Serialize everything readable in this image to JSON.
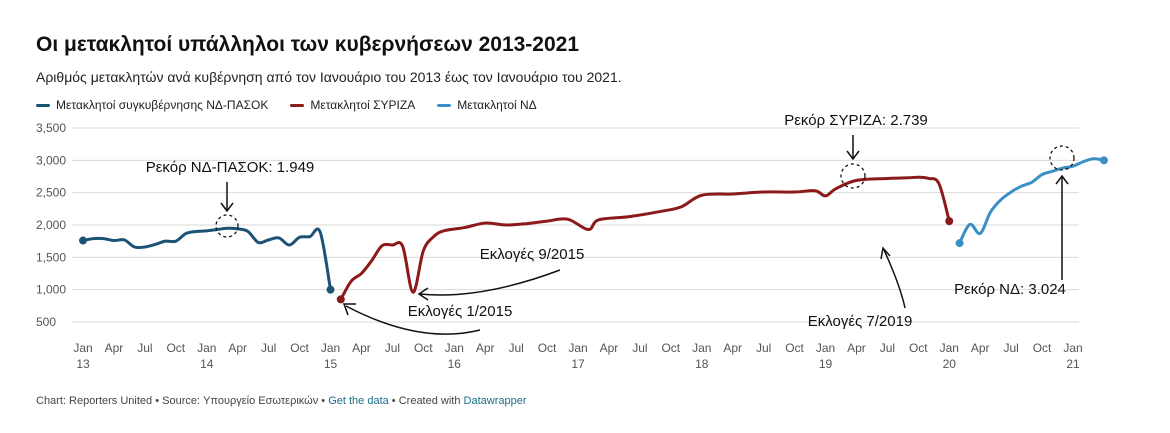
{
  "header": {
    "title": "Οι μετακλητοί υπάλληλοι των κυβερνήσεων 2013-2021",
    "subtitle": "Αριθμός μετακλητών ανά κυβέρνηση από τον Ιανουάριο του 2013 έως τον Ιανουάριο του 2021."
  },
  "colors": {
    "nd_pasok": "#1c5276",
    "syriza": "#8b1a1a",
    "nd": "#3a8fc6",
    "grid": "#d9d9d9",
    "axis": "#555555"
  },
  "footer": {
    "prefix": "Chart: Reporters United • Source: Υπουργείο Εσωτερικών • ",
    "get_data": "Get the data",
    "middle": " • Created with ",
    "datawrapper": "Datawrapper"
  },
  "chart_data": {
    "type": "line",
    "ylim": [
      500,
      3500
    ],
    "y_ticks": [
      "3,500",
      "3,000",
      "2,500",
      "2,000",
      "1,500",
      "1,000",
      "500"
    ],
    "x_ticks": [
      {
        "label": "Jan",
        "year": "13"
      },
      {
        "label": "Apr",
        "year": ""
      },
      {
        "label": "Jul",
        "year": ""
      },
      {
        "label": "Oct",
        "year": ""
      },
      {
        "label": "Jan",
        "year": "14"
      },
      {
        "label": "Apr",
        "year": ""
      },
      {
        "label": "Jul",
        "year": ""
      },
      {
        "label": "Oct",
        "year": ""
      },
      {
        "label": "Jan",
        "year": "15"
      },
      {
        "label": "Apr",
        "year": ""
      },
      {
        "label": "Jul",
        "year": ""
      },
      {
        "label": "Oct",
        "year": ""
      },
      {
        "label": "Jan",
        "year": "16"
      },
      {
        "label": "Apr",
        "year": ""
      },
      {
        "label": "Jul",
        "year": ""
      },
      {
        "label": "Oct",
        "year": ""
      },
      {
        "label": "Jan",
        "year": "17"
      },
      {
        "label": "Apr",
        "year": ""
      },
      {
        "label": "Jul",
        "year": ""
      },
      {
        "label": "Oct",
        "year": ""
      },
      {
        "label": "Jan",
        "year": "18"
      },
      {
        "label": "Apr",
        "year": ""
      },
      {
        "label": "Jul",
        "year": ""
      },
      {
        "label": "Oct",
        "year": ""
      },
      {
        "label": "Jan",
        "year": "19"
      },
      {
        "label": "Apr",
        "year": ""
      },
      {
        "label": "Jul",
        "year": ""
      },
      {
        "label": "Oct",
        "year": ""
      },
      {
        "label": "Jan",
        "year": "20"
      },
      {
        "label": "Apr",
        "year": ""
      },
      {
        "label": "Jul",
        "year": ""
      },
      {
        "label": "Oct",
        "year": ""
      },
      {
        "label": "Jan",
        "year": "21"
      }
    ],
    "series": [
      {
        "name": "Μετακλητοί συγκυβέρνησης ΝΔ-ΠΑΣΟΚ",
        "color_key": "nd_pasok",
        "points": [
          [
            "2013-01",
            1760
          ],
          [
            "2013-02",
            1790
          ],
          [
            "2013-03",
            1790
          ],
          [
            "2013-04",
            1760
          ],
          [
            "2013-05",
            1770
          ],
          [
            "2013-06",
            1660
          ],
          [
            "2013-07",
            1660
          ],
          [
            "2013-08",
            1700
          ],
          [
            "2013-09",
            1750
          ],
          [
            "2013-10",
            1750
          ],
          [
            "2013-11",
            1870
          ],
          [
            "2013-12",
            1900
          ],
          [
            "2014-01",
            1910
          ],
          [
            "2014-02",
            1930
          ],
          [
            "2014-03",
            1949
          ],
          [
            "2014-04",
            1940
          ],
          [
            "2014-05",
            1900
          ],
          [
            "2014-06",
            1730
          ],
          [
            "2014-07",
            1770
          ],
          [
            "2014-08",
            1800
          ],
          [
            "2014-09",
            1690
          ],
          [
            "2014-10",
            1810
          ],
          [
            "2014-11",
            1820
          ],
          [
            "2014-12",
            1890
          ],
          [
            "2015-01",
            1000
          ]
        ]
      },
      {
        "name": "Μετακλητοί ΣΥΡΙΖΑ",
        "color_key": "syriza",
        "points": [
          [
            "2015-02",
            850
          ],
          [
            "2015-03",
            1130
          ],
          [
            "2015-04",
            1250
          ],
          [
            "2015-05",
            1450
          ],
          [
            "2015-06",
            1680
          ],
          [
            "2015-07",
            1690
          ],
          [
            "2015-08",
            1670
          ],
          [
            "2015-09",
            960
          ],
          [
            "2015-10",
            1600
          ],
          [
            "2015-11",
            1820
          ],
          [
            "2015-12",
            1910
          ],
          [
            "2016-02",
            1960
          ],
          [
            "2016-04",
            2030
          ],
          [
            "2016-06",
            2000
          ],
          [
            "2016-08",
            2020
          ],
          [
            "2016-10",
            2060
          ],
          [
            "2016-12",
            2090
          ],
          [
            "2017-02",
            1930
          ],
          [
            "2017-03",
            2080
          ],
          [
            "2017-06",
            2130
          ],
          [
            "2017-09",
            2210
          ],
          [
            "2017-11",
            2280
          ],
          [
            "2018-01",
            2460
          ],
          [
            "2018-04",
            2480
          ],
          [
            "2018-07",
            2510
          ],
          [
            "2018-10",
            2510
          ],
          [
            "2018-12",
            2530
          ],
          [
            "2019-01",
            2450
          ],
          [
            "2019-02",
            2560
          ],
          [
            "2019-04",
            2690
          ],
          [
            "2019-07",
            2720
          ],
          [
            "2019-09",
            2730
          ],
          [
            "2019-10",
            2739
          ],
          [
            "2019-11",
            2720
          ],
          [
            "2019-12",
            2640
          ],
          [
            "2020-01",
            2060
          ]
        ]
      },
      {
        "name": "Μετακλητοί ΝΔ",
        "color_key": "nd",
        "points": [
          [
            "2020-02",
            1720
          ],
          [
            "2020-03",
            2010
          ],
          [
            "2020-04",
            1870
          ],
          [
            "2020-05",
            2200
          ],
          [
            "2020-06",
            2390
          ],
          [
            "2020-07",
            2510
          ],
          [
            "2020-08",
            2600
          ],
          [
            "2020-09",
            2660
          ],
          [
            "2020-10",
            2780
          ],
          [
            "2020-11",
            2830
          ],
          [
            "2020-12",
            2880
          ],
          [
            "2021-01",
            2910
          ],
          [
            "2021-02",
            2980
          ],
          [
            "2021-03",
            3024
          ],
          [
            "2021-04",
            3000
          ]
        ]
      }
    ],
    "annotations": [
      {
        "id": "record-nd-pasok",
        "text": "Ρεκόρ ΝΔ-ΠΑΣΟΚ: 1.949"
      },
      {
        "id": "elections-9-2015",
        "text": "Εκλογές 9/2015"
      },
      {
        "id": "elections-1-2015",
        "text": "Εκλογές 1/2015"
      },
      {
        "id": "record-syriza",
        "text": "Ρεκόρ ΣΥΡΙΖΑ: 2.739"
      },
      {
        "id": "elections-7-2019",
        "text": "Εκλογές 7/2019"
      },
      {
        "id": "record-nd",
        "text": "Ρεκόρ ΝΔ: 3.024"
      }
    ]
  }
}
